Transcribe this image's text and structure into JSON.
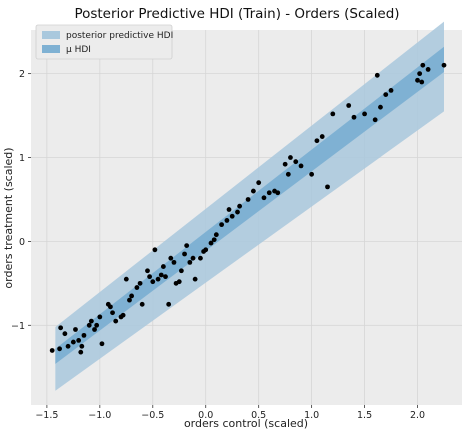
{
  "chart_data": {
    "type": "scatter",
    "title": "Posterior Predictive HDI (Train) - Orders (Scaled)",
    "xlabel": "orders control (scaled)",
    "ylabel": "orders treatment (scaled)",
    "xlim": [
      -1.65,
      2.42
    ],
    "ylim": [
      -1.95,
      2.52
    ],
    "xticks": [
      -1.5,
      -1.0,
      -0.5,
      0.0,
      0.5,
      1.0,
      1.5,
      2.0
    ],
    "xtick_labels": [
      "−1.5",
      "−1.0",
      "−0.5",
      "0.0",
      "0.5",
      "1.0",
      "1.5",
      "2.0"
    ],
    "yticks": [
      -1,
      0,
      1,
      2
    ],
    "ytick_labels": [
      "−1",
      "0",
      "1",
      "2"
    ],
    "grid": true,
    "legend_position": "top-left",
    "legend": [
      {
        "label": "posterior predictive HDI",
        "color": "#a9c8dd"
      },
      {
        "label": "μ HDI",
        "color": "#7fb1d3"
      }
    ],
    "colors": {
      "background": "#ececec",
      "hdi_outer": "#a9c8dd",
      "hdi_inner": "#7fb1d3",
      "points": "#000000",
      "grid": "#d6d6d6"
    },
    "hdi_band": {
      "x": [
        -1.42,
        2.25
      ],
      "outer_lower": [
        -1.78,
        1.55
      ],
      "outer_upper": [
        -1.02,
        2.62
      ],
      "inner_lower": [
        -1.46,
        2.02
      ],
      "inner_upper": [
        -1.28,
        2.32
      ]
    },
    "series": [
      {
        "x": [
          -1.45,
          -1.38,
          -1.37,
          -1.33,
          -1.3,
          -1.25,
          -1.23,
          -1.2,
          -1.18,
          -1.17,
          -1.15,
          -1.1,
          -1.08,
          -1.05,
          -1.03,
          -1.0,
          -0.98,
          -0.92,
          -0.9,
          -0.88,
          -0.85,
          -0.8,
          -0.78,
          -0.75,
          -0.72,
          -0.7,
          -0.65,
          -0.62,
          -0.6,
          -0.55,
          -0.53,
          -0.5,
          -0.48,
          -0.45,
          -0.42,
          -0.4,
          -0.38,
          -0.35,
          -0.33,
          -0.3,
          -0.28,
          -0.25,
          -0.23,
          -0.2,
          -0.18,
          -0.15,
          -0.12,
          -0.1,
          -0.05,
          -0.02,
          0.0,
          0.05,
          0.08,
          0.1,
          0.15,
          0.2,
          0.22,
          0.25,
          0.3,
          0.32,
          0.4,
          0.45,
          0.5,
          0.55,
          0.6,
          0.65,
          0.68,
          0.75,
          0.78,
          0.8,
          0.85,
          0.9,
          1.0,
          1.05,
          1.1,
          1.15,
          1.2,
          1.35,
          1.4,
          1.5,
          1.6,
          1.62,
          1.65,
          1.7,
          1.75,
          2.0,
          2.02,
          2.04,
          2.05,
          2.1,
          2.25
        ],
        "y": [
          -1.3,
          -1.28,
          -1.03,
          -1.1,
          -1.25,
          -1.2,
          -1.05,
          -1.18,
          -1.32,
          -1.25,
          -1.12,
          -1.0,
          -0.95,
          -1.05,
          -1.0,
          -0.9,
          -1.22,
          -0.75,
          -0.78,
          -0.85,
          -0.95,
          -0.9,
          -0.88,
          -0.45,
          -0.7,
          -0.65,
          -0.55,
          -0.5,
          -0.75,
          -0.35,
          -0.42,
          -0.48,
          -0.1,
          -0.45,
          -0.4,
          -0.3,
          -0.42,
          -0.75,
          -0.2,
          -0.25,
          -0.5,
          -0.48,
          -0.35,
          -0.15,
          -0.05,
          -0.25,
          -0.2,
          -0.45,
          -0.2,
          -0.12,
          -0.1,
          -0.02,
          0.02,
          0.08,
          0.2,
          0.25,
          0.38,
          0.3,
          0.35,
          0.42,
          0.5,
          0.6,
          0.7,
          0.52,
          0.58,
          0.6,
          0.58,
          0.92,
          0.8,
          1.0,
          0.95,
          0.9,
          0.8,
          1.2,
          1.25,
          0.65,
          1.52,
          1.62,
          1.48,
          1.52,
          1.45,
          1.98,
          1.6,
          1.75,
          1.8,
          1.92,
          2.0,
          1.9,
          2.1,
          2.05,
          2.1
        ]
      }
    ]
  }
}
